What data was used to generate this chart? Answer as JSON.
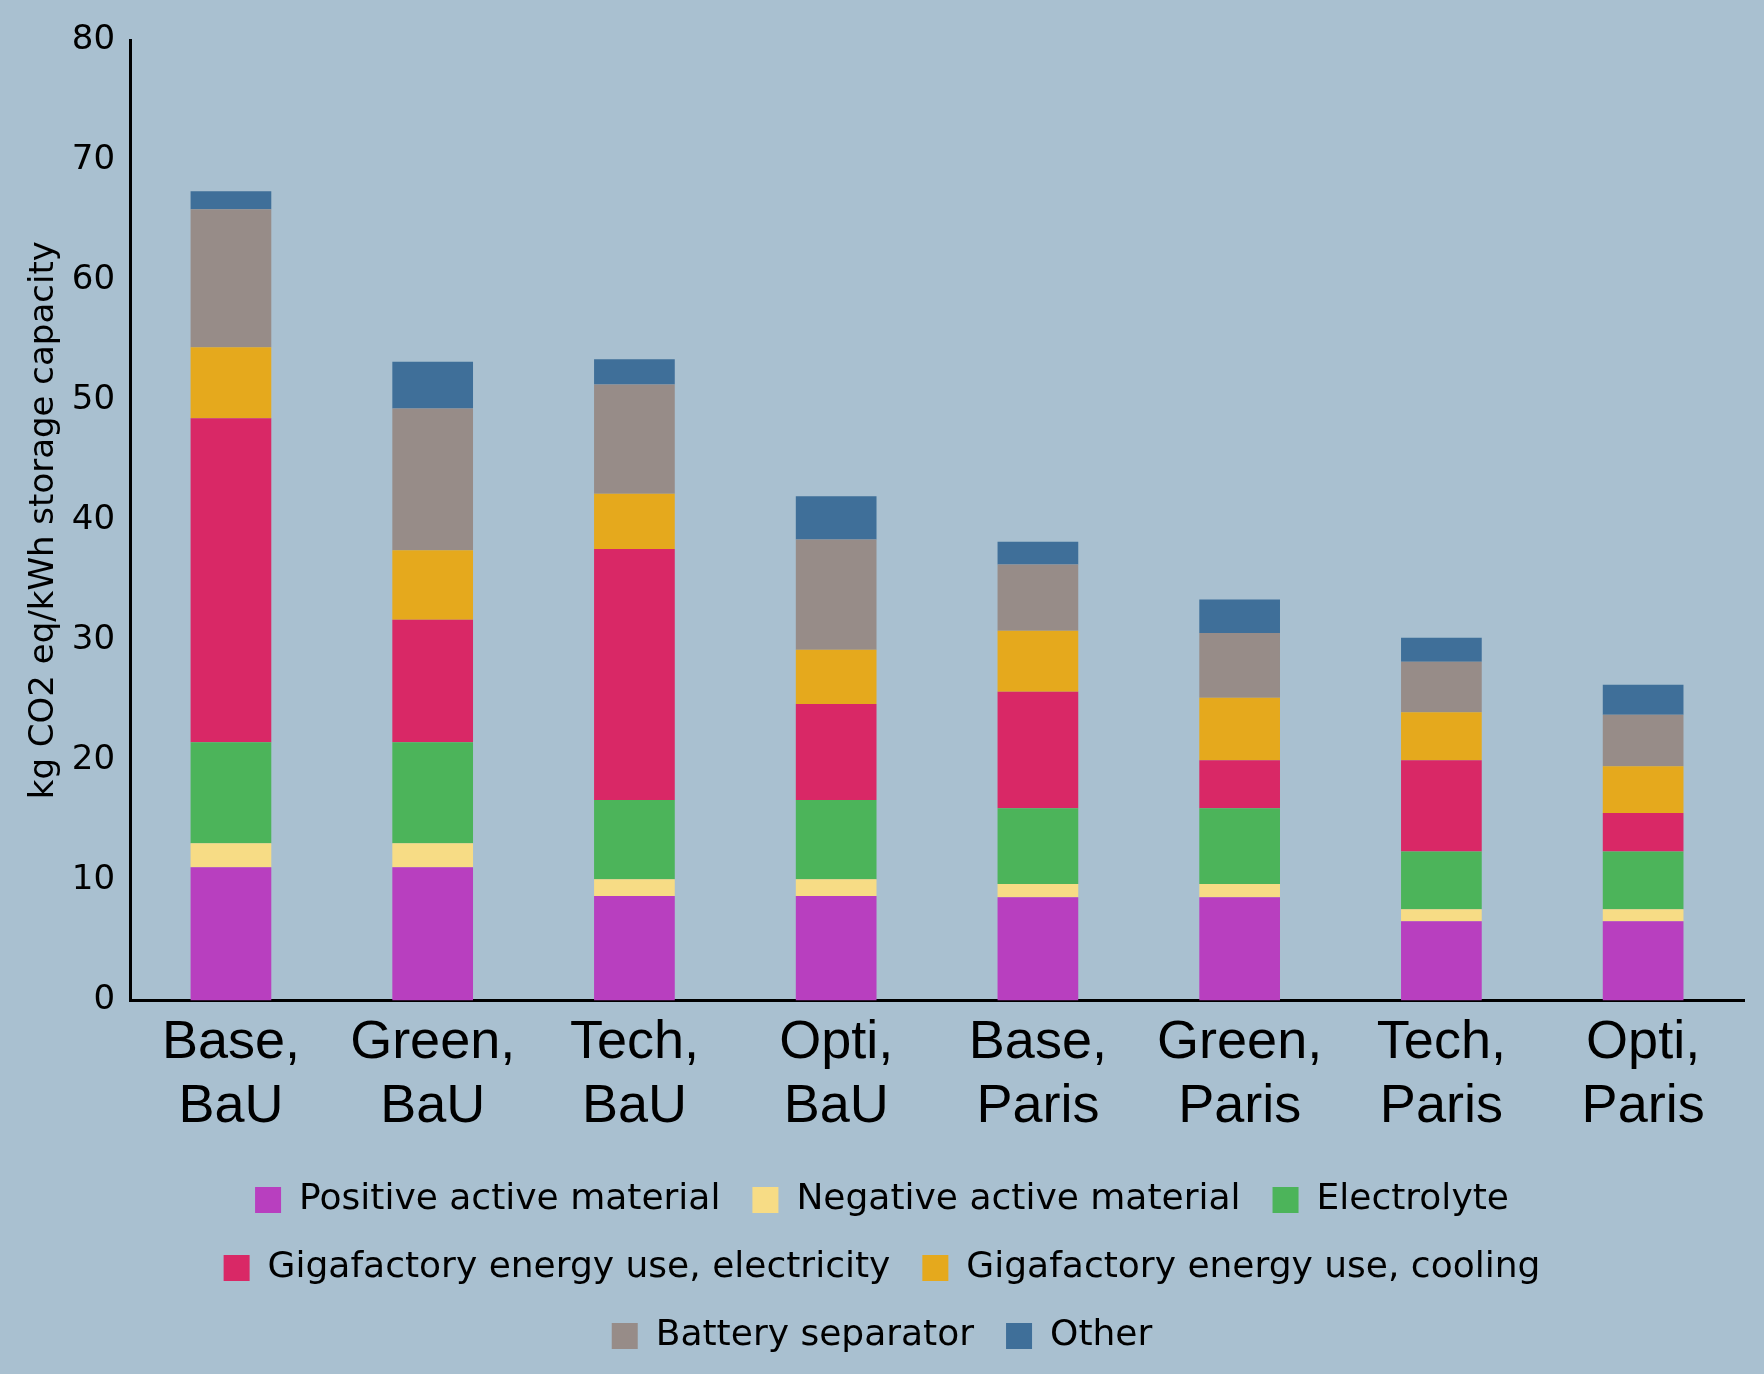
{
  "chart_data": {
    "type": "bar",
    "stacked": true,
    "ylabel": "kg CO2 eq/kWh storage capacity",
    "categories": [
      "Base, BaU",
      "Green, BaU",
      "Tech, BaU",
      "Opti, BaU",
      "Base, Paris",
      "Green, Paris",
      "Tech, Paris",
      "Opti, Paris"
    ],
    "series": [
      {
        "name": "Positive active material",
        "color": "#b83fbf",
        "values": [
          11.1,
          11.1,
          8.7,
          8.7,
          8.6,
          8.6,
          6.6,
          6.6
        ]
      },
      {
        "name": "Negative active material",
        "color": "#f7dc85",
        "values": [
          2.0,
          2.0,
          1.4,
          1.4,
          1.1,
          1.1,
          1.0,
          1.0
        ]
      },
      {
        "name": "Electrolyte",
        "color": "#4cb45a",
        "values": [
          8.4,
          8.4,
          6.6,
          6.6,
          6.3,
          6.3,
          4.8,
          4.8
        ]
      },
      {
        "name": "Gigafactory energy use, electricity",
        "color": "#d92866",
        "values": [
          27.0,
          10.2,
          20.9,
          8.0,
          9.7,
          4.0,
          7.6,
          3.2
        ]
      },
      {
        "name": "Gigafactory energy use, cooling",
        "color": "#e5a91d",
        "values": [
          5.9,
          5.8,
          4.6,
          4.5,
          5.1,
          5.2,
          4.0,
          3.9
        ]
      },
      {
        "name": "Battery separator",
        "color": "#978c88",
        "values": [
          11.5,
          11.8,
          9.1,
          9.2,
          5.5,
          5.4,
          4.2,
          4.3
        ]
      },
      {
        "name": "Other",
        "color": "#3f6f99",
        "values": [
          1.5,
          3.9,
          2.1,
          3.6,
          1.9,
          2.8,
          2.0,
          2.5
        ]
      }
    ],
    "ylim": [
      0,
      80
    ],
    "yticks": [
      0,
      10,
      20,
      30,
      40,
      50,
      60,
      70,
      80
    ],
    "grid": false,
    "legend": "bottom"
  }
}
